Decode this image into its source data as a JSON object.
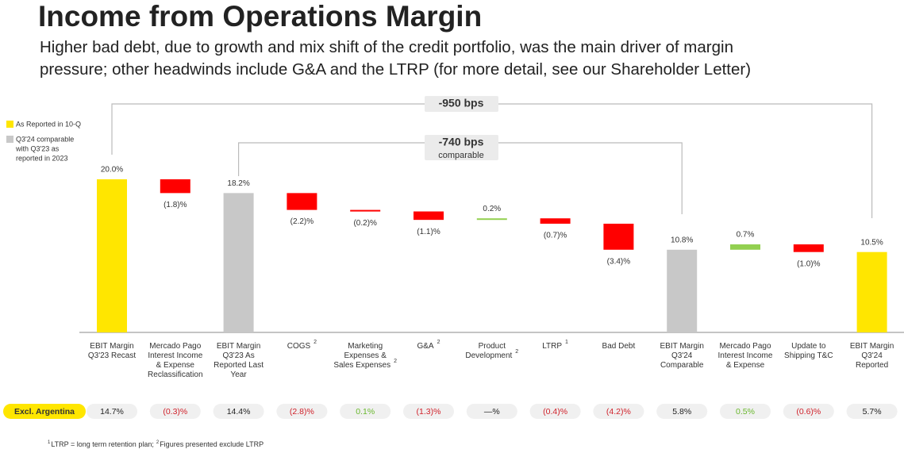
{
  "chart_data": {
    "type": "waterfall",
    "title": "Income from Operations Margin",
    "subtitle": [
      "Higher bad debt, due to growth and mix shift of the credit portfolio, was the main driver of margin",
      "pressure; other headwinds include G&A and the LTRP (for more detail, see our Shareholder Letter)"
    ],
    "legend": [
      {
        "name": [
          "As Reported in 10-Q"
        ],
        "color": "#ffe600"
      },
      {
        "name": [
          "Q3'24 comparable",
          "with Q3'23 as",
          "reported in 2023"
        ],
        "color": "#c8c8c8"
      }
    ],
    "categories": [
      [
        "EBIT Margin",
        "Q3'23 Recast"
      ],
      [
        "Mercado Pago",
        "Interest Income",
        "& Expense",
        "Reclassification"
      ],
      [
        "EBIT Margin",
        "Q3'23 As",
        "Reported Last",
        "Year"
      ],
      [
        "COGS"
      ],
      [
        "Marketing",
        "Expenses &",
        "Sales Expenses"
      ],
      [
        "G&A"
      ],
      [
        "Product",
        "Development"
      ],
      [
        "LTRP"
      ],
      [
        "Bad Debt"
      ],
      [
        "EBIT Margin",
        "Q3'24",
        "Comparable"
      ],
      [
        "Mercado Pago",
        "Interest Income",
        "& Expense"
      ],
      [
        "Update to",
        "Shipping T&C"
      ],
      [
        "EBIT Margin",
        "Q3'24",
        "Reported"
      ]
    ],
    "category_notes": [
      null,
      null,
      null,
      "2",
      "2",
      "2",
      "2",
      "1",
      null,
      null,
      null,
      null,
      null
    ],
    "values": [
      20.0,
      -1.8,
      18.2,
      -2.2,
      -0.2,
      -1.1,
      0.2,
      -0.7,
      -3.4,
      10.8,
      0.7,
      -1.0,
      10.5
    ],
    "value_labels": [
      "20.0%",
      "(1.8)%",
      "18.2%",
      "(2.2)%",
      "(0.2)%",
      "(1.1)%",
      "0.2%",
      "(0.7)%",
      "(3.4)%",
      "10.8%",
      "0.7%",
      "(1.0)%",
      "10.5%"
    ],
    "totals": [
      true,
      false,
      true,
      false,
      false,
      false,
      false,
      false,
      false,
      true,
      false,
      false,
      true
    ],
    "total_colors": [
      "#ffe600",
      null,
      "#c8c8c8",
      null,
      null,
      null,
      null,
      null,
      null,
      "#c8c8c8",
      null,
      null,
      "#ffe600"
    ],
    "increase_color": "#92d050",
    "decrease_color": "#ff0000",
    "ylim": [
      0,
      20
    ],
    "annotations": [
      {
        "text": [
          "-950 bps"
        ]
      },
      {
        "text": [
          "-740 bps",
          "comparable"
        ]
      }
    ],
    "excl_argentina": {
      "label": "Excl. Argentina",
      "values": [
        14.7,
        -0.3,
        14.4,
        -2.8,
        0.1,
        -1.3,
        null,
        -0.4,
        -4.2,
        5.8,
        0.5,
        -0.6,
        5.7
      ],
      "value_labels": [
        "14.7%",
        "(0.3)%",
        "14.4%",
        "(2.8)%",
        "0.1%",
        "(1.3)%",
        "—%",
        "(0.4)%",
        "(4.2)%",
        "5.8%",
        "0.5%",
        "(0.6)%",
        "5.7%"
      ]
    },
    "footnote": [
      {
        "mark": "1",
        "text": "LTRP = long term retention plan;"
      },
      {
        "mark": "2",
        "text": "Figures presented exclude LTRP"
      }
    ]
  }
}
